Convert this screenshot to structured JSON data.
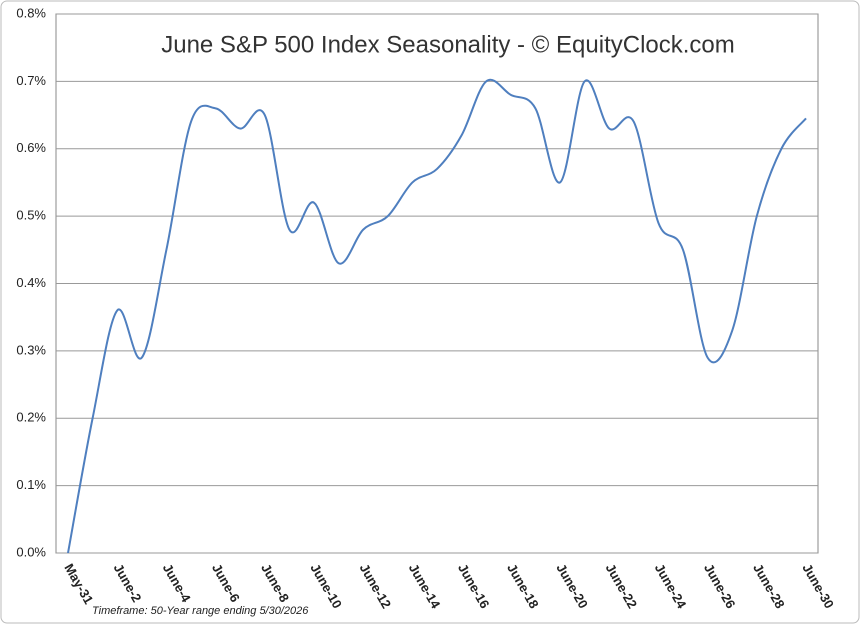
{
  "chart_data": {
    "type": "line",
    "title": "June S&P 500 Index Seasonality - © EquityClock.com",
    "footnote": "Timeframe: 50-Year range ending 5/30/2026",
    "categories": [
      "May-31",
      null,
      "June-2",
      null,
      "June-4",
      null,
      "June-6",
      null,
      "June-8",
      null,
      "June-10",
      null,
      "June-12",
      null,
      "June-14",
      null,
      "June-16",
      null,
      "June-18",
      null,
      "June-20",
      null,
      "June-22",
      null,
      "June-24",
      null,
      "June-26",
      null,
      "June-28",
      null,
      "June-30"
    ],
    "values": [
      0,
      0.2,
      0.36,
      0.29,
      0.45,
      0.64,
      0.66,
      0.63,
      0.65,
      0.48,
      0.52,
      0.43,
      0.48,
      0.5,
      0.55,
      0.57,
      0.62,
      0.7,
      0.68,
      0.66,
      0.55,
      0.7,
      0.63,
      0.64,
      0.49,
      0.45,
      0.29,
      0.33,
      0.5,
      0.6,
      0.645
    ],
    "color": "#4f7fbf",
    "ylim": [
      0,
      0.8
    ],
    "yticks": [
      {
        "value": 0,
        "label": "0.0%"
      },
      {
        "value": 0.1,
        "label": "0.1%"
      },
      {
        "value": 0.2,
        "label": "0.2%"
      },
      {
        "value": 0.3,
        "label": "0.3%"
      },
      {
        "value": 0.4,
        "label": "0.4%"
      },
      {
        "value": 0.5,
        "label": "0.5%"
      },
      {
        "value": 0.6,
        "label": "0.6%"
      },
      {
        "value": 0.7,
        "label": "0.7%"
      },
      {
        "value": 0.8,
        "label": "0.8%"
      }
    ],
    "grid": true
  }
}
